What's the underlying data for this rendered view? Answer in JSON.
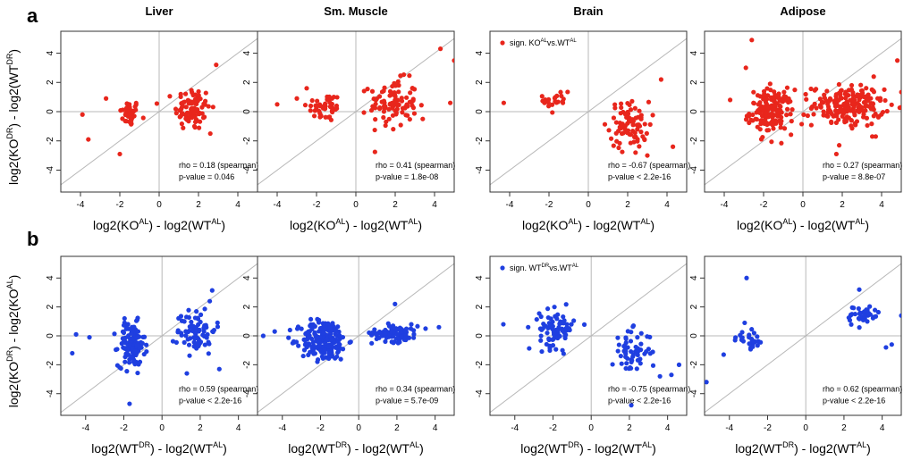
{
  "colors": {
    "red": "#e8261c",
    "blue": "#1f3fe0",
    "grid": "#b8b8b8",
    "frame": "#333333"
  },
  "rows": [
    {
      "label": "a",
      "xlabel": {
        "pre": "log2(KO",
        "sup1": "AL",
        "mid": ") - log2(WT",
        "sup2": "AL",
        "post": ")"
      },
      "ylabel": {
        "pre": "log2(KO",
        "sup1": "DR",
        "mid": ") - log2(WT",
        "sup2": "DR",
        "post": ")"
      },
      "legend": {
        "text_pre": "sign. KO",
        "sup1": "AL",
        "text_mid": "vs.WT",
        "sup2": "AL"
      },
      "color": "red"
    },
    {
      "label": "b",
      "xlabel": {
        "pre": "log2(WT",
        "sup1": "DR",
        "mid": ") - log2(WT",
        "sup2": "AL",
        "post": ")"
      },
      "ylabel": {
        "pre": "log2(KO",
        "sup1": "DR",
        "mid": ") - log2(KO",
        "sup2": "AL",
        "post": ")"
      },
      "legend": {
        "text_pre": "sign. WT",
        "sup1": "DR",
        "text_mid": "vs.WT",
        "sup2": "AL"
      },
      "color": "blue"
    }
  ],
  "columns": [
    "Liver",
    "Sm. Muscle",
    "Brain",
    "Adipose"
  ],
  "chart_data": [
    {
      "type": "scatter",
      "row": "a",
      "title": "Liver",
      "xlim": [
        -5,
        5
      ],
      "ylim": [
        -5.5,
        5.5
      ],
      "xticks": [
        "-4",
        "-2",
        "0",
        "2",
        "4"
      ],
      "yticks": [
        "-4",
        "-2",
        "0",
        "2",
        "4"
      ],
      "stats": [
        "rho =  0.18 (spearman)",
        "p-value = 0.046"
      ],
      "clusters": [
        {
          "cx": -1.5,
          "cy": -0.1,
          "sx": 0.25,
          "sy": 0.45,
          "n": 40
        },
        {
          "cx": 1.7,
          "cy": 0.2,
          "sx": 0.45,
          "sy": 0.75,
          "n": 85
        }
      ],
      "points": [
        [
          -3.9,
          -0.2
        ],
        [
          -3.6,
          -1.9
        ],
        [
          -2.0,
          -2.9
        ],
        [
          -2.7,
          0.9
        ],
        [
          2.9,
          3.2
        ],
        [
          2.6,
          -1.5
        ]
      ]
    },
    {
      "type": "scatter",
      "row": "a",
      "title": "Sm. Muscle",
      "xlim": [
        -5,
        5
      ],
      "ylim": [
        -5.5,
        5.5
      ],
      "xticks": [
        "-4",
        "-2",
        "0",
        "2",
        "4"
      ],
      "yticks": [
        "-4",
        "-2",
        "0",
        "2",
        "4"
      ],
      "stats": [
        "rho =  0.41 (spearman)",
        "p-value = 1.8e-08"
      ],
      "clusters": [
        {
          "cx": -1.6,
          "cy": 0.3,
          "sx": 0.45,
          "sy": 0.5,
          "n": 45
        },
        {
          "cx": 1.9,
          "cy": 0.6,
          "sx": 0.6,
          "sy": 0.8,
          "n": 95
        }
      ],
      "points": [
        [
          -4.0,
          0.5
        ],
        [
          -3.0,
          0.9
        ],
        [
          -2.5,
          1.6
        ],
        [
          4.3,
          4.3
        ],
        [
          5.0,
          3.5
        ],
        [
          4.8,
          0.6
        ],
        [
          1.9,
          -1.2
        ],
        [
          3.4,
          -0.5
        ]
      ]
    },
    {
      "type": "scatter",
      "row": "a",
      "title": "Brain",
      "xlim": [
        -5,
        5
      ],
      "ylim": [
        -5.5,
        5.5
      ],
      "xticks": [
        "-4",
        "-2",
        "0",
        "2",
        "4"
      ],
      "yticks": [
        "-4",
        "-2",
        "0",
        "2",
        "4"
      ],
      "stats": [
        "rho = -0.67 (spearman)",
        "p-value < 2.2e-16"
      ],
      "clusters": [
        {
          "cx": -1.6,
          "cy": 0.8,
          "sx": 0.35,
          "sy": 0.55,
          "n": 22
        },
        {
          "cx": 2.1,
          "cy": -0.9,
          "sx": 0.5,
          "sy": 0.8,
          "n": 80
        }
      ],
      "points": [
        [
          -4.3,
          0.6
        ],
        [
          3.7,
          2.2
        ],
        [
          4.3,
          -2.4
        ],
        [
          3.0,
          -3.0
        ],
        [
          2.4,
          -2.8
        ]
      ]
    },
    {
      "type": "scatter",
      "row": "a",
      "title": "Adipose",
      "xlim": [
        -5,
        5
      ],
      "ylim": [
        -5.5,
        5.5
      ],
      "xticks": [
        "-4",
        "-2",
        "0",
        "2",
        "4"
      ],
      "yticks": [
        "-4",
        "-2",
        "0",
        "2",
        "4"
      ],
      "stats": [
        "rho =  0.27 (spearman)",
        "p-value = 8.8e-07"
      ],
      "clusters": [
        {
          "cx": -1.6,
          "cy": 0.0,
          "sx": 0.55,
          "sy": 0.75,
          "n": 160
        },
        {
          "cx": 2.3,
          "cy": 0.4,
          "sx": 0.9,
          "sy": 0.7,
          "n": 190
        }
      ],
      "points": [
        [
          -2.6,
          4.9
        ],
        [
          -2.9,
          3.0
        ],
        [
          3.6,
          2.4
        ],
        [
          4.8,
          3.5
        ],
        [
          -3.7,
          0.8
        ],
        [
          3.7,
          -1.7
        ],
        [
          1.7,
          -2.9
        ]
      ]
    },
    {
      "type": "scatter",
      "row": "b",
      "title": "Liver",
      "xlim": [
        -5.3,
        5
      ],
      "ylim": [
        -5.5,
        5.5
      ],
      "xticks": [
        "-4",
        "-2",
        "0",
        "2",
        "4"
      ],
      "yticks": [
        "-4",
        "-2",
        "0",
        "2",
        "4"
      ],
      "stats": [
        "rho =  0.59 (spearman)",
        "p-value < 2.2e-16"
      ],
      "clusters": [
        {
          "cx": -1.6,
          "cy": -0.6,
          "sx": 0.35,
          "sy": 0.75,
          "n": 130
        },
        {
          "cx": 1.8,
          "cy": 0.4,
          "sx": 0.5,
          "sy": 0.8,
          "n": 75
        }
      ],
      "points": [
        [
          -4.7,
          -1.2
        ],
        [
          -4.5,
          0.1
        ],
        [
          -3.8,
          -0.1
        ],
        [
          -1.7,
          -4.7
        ],
        [
          1.3,
          -2.6
        ],
        [
          3.0,
          -2.3
        ],
        [
          2.5,
          2.4
        ]
      ]
    },
    {
      "type": "scatter",
      "row": "b",
      "title": "Sm. Muscle",
      "xlim": [
        -5.3,
        5
      ],
      "ylim": [
        -5.5,
        5.5
      ],
      "xticks": [
        "-4",
        "-2",
        "0",
        "2",
        "4"
      ],
      "yticks": [
        "-4",
        "-2",
        "0",
        "2",
        "4"
      ],
      "stats": [
        "rho =  0.34 (spearman)",
        "p-value = 5.7e-09"
      ],
      "clusters": [
        {
          "cx": -1.8,
          "cy": -0.3,
          "sx": 0.6,
          "sy": 0.7,
          "n": 220
        },
        {
          "cx": 1.9,
          "cy": 0.2,
          "sx": 0.6,
          "sy": 0.3,
          "n": 90
        }
      ],
      "points": [
        [
          -4.4,
          0.3
        ],
        [
          -5.0,
          0.0
        ],
        [
          -3.6,
          0.4
        ],
        [
          3.5,
          0.5
        ],
        [
          4.2,
          0.6
        ],
        [
          1.9,
          2.2
        ]
      ]
    },
    {
      "type": "scatter",
      "row": "b",
      "title": "Brain",
      "xlim": [
        -5.3,
        5
      ],
      "ylim": [
        -5.5,
        5.5
      ],
      "xticks": [
        "-4",
        "-2",
        "0",
        "2",
        "4"
      ],
      "yticks": [
        "-4",
        "-2",
        "0",
        "2",
        "4"
      ],
      "stats": [
        "rho = -0.75 (spearman)",
        "p-value < 2.2e-16"
      ],
      "clusters": [
        {
          "cx": -1.8,
          "cy": 0.5,
          "sx": 0.45,
          "sy": 0.65,
          "n": 85
        },
        {
          "cx": 2.1,
          "cy": -1.1,
          "sx": 0.5,
          "sy": 0.75,
          "n": 60
        }
      ],
      "points": [
        [
          -4.6,
          0.8
        ],
        [
          -3.3,
          0.6
        ],
        [
          4.6,
          -2.0
        ],
        [
          4.2,
          -2.7
        ],
        [
          3.6,
          -2.8
        ],
        [
          2.1,
          -4.8
        ]
      ]
    },
    {
      "type": "scatter",
      "row": "b",
      "title": "Adipose",
      "xlim": [
        -5.3,
        5
      ],
      "ylim": [
        -5.5,
        5.5
      ],
      "xticks": [
        "-4",
        "-2",
        "0",
        "2",
        "4"
      ],
      "yticks": [
        "-4",
        "-2",
        "0",
        "2",
        "4"
      ],
      "stats": [
        "rho =  0.62 (spearman)",
        "p-value < 2.2e-16"
      ],
      "clusters": [
        {
          "cx": -2.9,
          "cy": -0.3,
          "sx": 0.35,
          "sy": 0.3,
          "n": 26
        },
        {
          "cx": 3.0,
          "cy": 1.4,
          "sx": 0.45,
          "sy": 0.35,
          "n": 42
        }
      ],
      "points": [
        [
          -3.1,
          4.0
        ],
        [
          -3.2,
          0.9
        ],
        [
          -4.3,
          -1.3
        ],
        [
          -5.2,
          -3.2
        ],
        [
          -3.7,
          -0.3
        ],
        [
          4.2,
          -0.8
        ],
        [
          4.5,
          -0.6
        ],
        [
          5.0,
          1.4
        ],
        [
          2.8,
          3.2
        ]
      ]
    }
  ]
}
